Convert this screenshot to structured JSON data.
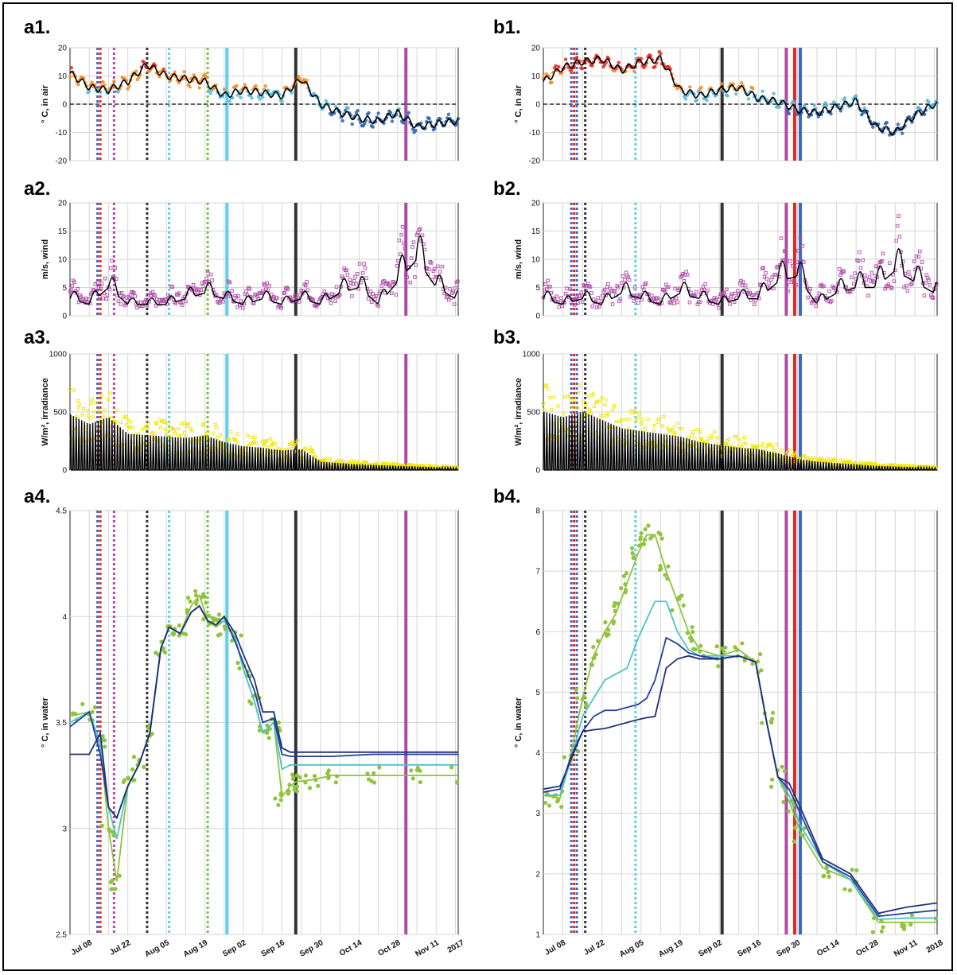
{
  "panel_labels": {
    "a1": "a1.",
    "a2": "a2.",
    "a3": "a3.",
    "a4": "a4.",
    "b1": "b1.",
    "b2": "b2.",
    "b3": "b3.",
    "b4": "b4."
  },
  "colors": {
    "air_hot": "#e8261c",
    "air_warm": "#f08a24",
    "air_cool": "#52b6e0",
    "air_cold": "#2a5fa8",
    "wind": "#b04aa8",
    "irradiance": "#f2e600",
    "water_green": "#8fc43c",
    "water_teal": "#4cc3c9",
    "water_blue": "#1f3f9b",
    "water_navy": "#22307a",
    "marker_blue": "#3e66c9",
    "marker_red": "#e8261c",
    "marker_purple": "#b04aa8",
    "marker_black": "#333333",
    "marker_cyan": "#5fd0e8",
    "marker_green": "#78c43c"
  },
  "chart_data": [
    {
      "id": "a1",
      "type": "line",
      "ylabel": "° C, in air",
      "ylim": [
        -20,
        20
      ],
      "yticks": [
        20,
        10,
        0,
        -10,
        -20
      ],
      "zero_line": true,
      "x_start": "2017-07-01",
      "x_end": "2017-11-19",
      "series": [
        {
          "values_by_week": [
            11,
            6,
            5,
            8,
            14,
            10,
            9,
            8,
            3,
            5,
            4,
            3,
            9,
            0,
            -3,
            -5,
            -6,
            -3,
            -8,
            -7,
            -6
          ]
        }
      ]
    },
    {
      "id": "a2",
      "type": "scatter",
      "ylabel": "m/s, wind",
      "ylim": [
        0,
        20
      ],
      "yticks": [
        20,
        15,
        10,
        5,
        0
      ],
      "x_start": "2017-07-01",
      "x_end": "2017-11-19",
      "series": [
        {
          "values_by_week": [
            3,
            2,
            5,
            2,
            2,
            2,
            3,
            4,
            3,
            2,
            3,
            2,
            3,
            2,
            4,
            5,
            2,
            6,
            10,
            5,
            3
          ]
        }
      ]
    },
    {
      "id": "a3",
      "type": "area",
      "ylabel": "W/m², irradiance",
      "ylim": [
        0,
        1000
      ],
      "yticks": [
        1000,
        500,
        0
      ],
      "x_start": "2017-07-01",
      "x_end": "2017-11-19",
      "series": [
        {
          "values_by_week": [
            400,
            330,
            380,
            260,
            250,
            240,
            230,
            250,
            200,
            170,
            160,
            140,
            150,
            60,
            50,
            40,
            35,
            30,
            25,
            20,
            15
          ]
        }
      ]
    },
    {
      "id": "a4",
      "type": "line",
      "ylabel": "° C, in water",
      "ylim": [
        2.5,
        4.5
      ],
      "yticks": [
        4.5,
        4,
        3.5,
        3,
        2.5
      ],
      "x_start": "2017-07-01",
      "x_end": "2017-11-19",
      "xtick_labels": [
        "Jul 08",
        "Jul 22",
        "Aug 05",
        "Aug 19",
        "Sep 02",
        "Sep 16",
        "Sep 30",
        "Oct 14",
        "Oct 28",
        "Nov 11"
      ],
      "year_label": "2017",
      "x_days": [
        0,
        7,
        11,
        14,
        17,
        21,
        25,
        29,
        33,
        36,
        40,
        44,
        47,
        50,
        53,
        56,
        60,
        63,
        67,
        70,
        74,
        77,
        80,
        82,
        88,
        95,
        110,
        125,
        141
      ],
      "series": [
        {
          "color_key": "water_green",
          "values": [
            3.53,
            3.55,
            3.4,
            3.0,
            2.75,
            3.2,
            3.3,
            3.45,
            3.85,
            3.95,
            3.92,
            4.05,
            4.1,
            3.98,
            3.95,
            3.98,
            3.9,
            3.75,
            3.6,
            3.45,
            3.5,
            3.15,
            3.2,
            3.22,
            3.23,
            3.25,
            3.25,
            3.25,
            3.25
          ]
        },
        {
          "color_key": "water_teal",
          "values": [
            3.5,
            3.55,
            3.4,
            3.1,
            2.95,
            3.2,
            3.3,
            3.45,
            3.85,
            3.95,
            3.92,
            4.02,
            4.05,
            3.98,
            3.96,
            3.98,
            3.9,
            3.75,
            3.6,
            3.45,
            3.5,
            3.28,
            3.3,
            3.3,
            3.3,
            3.3,
            3.3,
            3.3,
            3.3
          ]
        },
        {
          "color_key": "water_blue",
          "values": [
            3.48,
            3.55,
            3.35,
            3.1,
            3.05,
            3.2,
            3.3,
            3.45,
            3.85,
            3.95,
            3.92,
            4.02,
            4.05,
            3.98,
            3.96,
            4.0,
            3.88,
            3.78,
            3.65,
            3.5,
            3.52,
            3.35,
            3.34,
            3.34,
            3.34,
            3.34,
            3.35,
            3.35,
            3.35
          ]
        },
        {
          "color_key": "water_navy",
          "values": [
            3.35,
            3.35,
            3.45,
            3.1,
            3.05,
            3.2,
            3.3,
            3.45,
            3.85,
            3.95,
            3.92,
            4.02,
            4.05,
            3.98,
            3.96,
            4.0,
            3.92,
            3.82,
            3.7,
            3.55,
            3.55,
            3.38,
            3.36,
            3.36,
            3.36,
            3.36,
            3.36,
            3.36,
            3.36
          ]
        }
      ],
      "markers": [
        {
          "day": 10,
          "color_key": "marker_blue",
          "style": "dotted"
        },
        {
          "day": 11,
          "color_key": "marker_red",
          "style": "dotted"
        },
        {
          "day": 16,
          "color_key": "marker_purple",
          "style": "dotted"
        },
        {
          "day": 28,
          "color_key": "marker_black",
          "style": "dotted"
        },
        {
          "day": 36,
          "color_key": "marker_cyan",
          "style": "dotted"
        },
        {
          "day": 50,
          "color_key": "marker_green",
          "style": "dotted"
        },
        {
          "day": 57,
          "color_key": "marker_cyan",
          "style": "solid"
        },
        {
          "day": 82,
          "color_key": "marker_black",
          "style": "solid"
        },
        {
          "day": 122,
          "color_key": "marker_purple",
          "style": "solid"
        }
      ]
    },
    {
      "id": "b1",
      "type": "line",
      "ylabel": "° C, in air",
      "ylim": [
        -20,
        20
      ],
      "yticks": [
        20,
        10,
        0,
        -10,
        -20
      ],
      "zero_line": true,
      "x_start": "2018-07-01",
      "x_end": "2018-11-19",
      "series": [
        {
          "values_by_week": [
            8,
            13,
            15,
            16,
            12,
            15,
            16,
            5,
            3,
            5,
            6,
            2,
            1,
            -2,
            -3,
            -1,
            1,
            -8,
            -10,
            -4,
            0
          ]
        }
      ]
    },
    {
      "id": "b2",
      "type": "scatter",
      "ylabel": "m/s, wind",
      "ylim": [
        0,
        20
      ],
      "yticks": [
        20,
        15,
        10,
        5,
        0
      ],
      "x_start": "2018-07-01",
      "x_end": "2018-11-19",
      "series": [
        {
          "values_by_week": [
            3,
            2,
            3,
            2,
            4,
            3,
            2,
            4,
            3,
            2,
            3,
            3,
            6,
            7,
            2,
            4,
            5,
            5,
            8,
            6,
            4
          ]
        }
      ]
    },
    {
      "id": "b3",
      "type": "area",
      "ylabel": "W/m², irradiance",
      "ylim": [
        0,
        1000
      ],
      "yticks": [
        1000,
        500,
        0
      ],
      "x_start": "2018-07-01",
      "x_end": "2018-11-19",
      "series": [
        {
          "values_by_week": [
            420,
            380,
            420,
            360,
            300,
            280,
            260,
            240,
            200,
            180,
            160,
            150,
            120,
            80,
            60,
            50,
            40,
            30,
            25,
            20,
            15
          ]
        }
      ]
    },
    {
      "id": "b4",
      "type": "line",
      "ylabel": "° C, in water",
      "ylim": [
        1,
        8
      ],
      "yticks": [
        8,
        7,
        6,
        5,
        4,
        3,
        2,
        1
      ],
      "x_start": "2018-07-01",
      "x_end": "2018-11-19",
      "xtick_labels": [
        "Jul 08",
        "Jul 22",
        "Aug 05",
        "Aug 19",
        "Sep 02",
        "Sep 16",
        "Sep 30",
        "Oct 14",
        "Oct 28",
        "Nov 11"
      ],
      "year_label": "2018",
      "x_days": [
        0,
        6,
        10,
        14,
        18,
        22,
        26,
        30,
        34,
        37,
        40,
        44,
        48,
        52,
        56,
        63,
        70,
        76,
        80,
        84,
        88,
        92,
        100,
        110,
        120,
        130,
        141
      ],
      "series": [
        {
          "color_key": "water_green",
          "values": [
            3.3,
            3.25,
            4.0,
            4.9,
            5.6,
            6.0,
            6.3,
            6.8,
            7.3,
            7.6,
            7.6,
            7.0,
            6.5,
            6.0,
            5.7,
            5.6,
            5.7,
            5.5,
            4.5,
            3.6,
            3.2,
            2.7,
            2.1,
            1.9,
            1.2,
            1.2,
            1.2
          ]
        },
        {
          "color_key": "water_teal",
          "values": [
            3.3,
            3.3,
            3.9,
            4.6,
            4.9,
            5.2,
            5.3,
            5.4,
            5.9,
            6.2,
            6.5,
            6.5,
            6.0,
            5.7,
            5.6,
            5.6,
            5.6,
            5.5,
            4.5,
            3.6,
            3.3,
            2.8,
            2.2,
            1.9,
            1.25,
            1.27,
            1.27
          ]
        },
        {
          "color_key": "water_blue",
          "values": [
            3.35,
            3.4,
            3.95,
            4.35,
            4.6,
            4.7,
            4.7,
            4.75,
            4.8,
            4.9,
            5.2,
            5.9,
            5.8,
            5.65,
            5.6,
            5.55,
            5.6,
            5.5,
            4.5,
            3.6,
            3.4,
            3.0,
            2.2,
            1.95,
            1.3,
            1.35,
            1.4
          ]
        },
        {
          "color_key": "water_navy",
          "values": [
            3.4,
            3.45,
            3.9,
            4.35,
            4.38,
            4.4,
            4.45,
            4.5,
            4.55,
            4.58,
            4.6,
            5.4,
            5.55,
            5.6,
            5.55,
            5.55,
            5.6,
            5.5,
            4.5,
            3.6,
            3.5,
            3.1,
            2.25,
            2.0,
            1.35,
            1.45,
            1.52
          ]
        }
      ],
      "markers": [
        {
          "day": 10,
          "color_key": "marker_blue",
          "style": "dotted"
        },
        {
          "day": 11,
          "color_key": "marker_red",
          "style": "dotted"
        },
        {
          "day": 12,
          "color_key": "marker_blue",
          "style": "dotted"
        },
        {
          "day": 15,
          "color_key": "marker_black",
          "style": "dotted"
        },
        {
          "day": 33,
          "color_key": "marker_cyan",
          "style": "dotted"
        },
        {
          "day": 64,
          "color_key": "marker_black",
          "style": "solid"
        },
        {
          "day": 87,
          "color_key": "marker_purple",
          "style": "solid"
        },
        {
          "day": 90,
          "color_key": "marker_red",
          "style": "solid"
        },
        {
          "day": 92,
          "color_key": "marker_blue",
          "style": "solid"
        }
      ]
    }
  ]
}
